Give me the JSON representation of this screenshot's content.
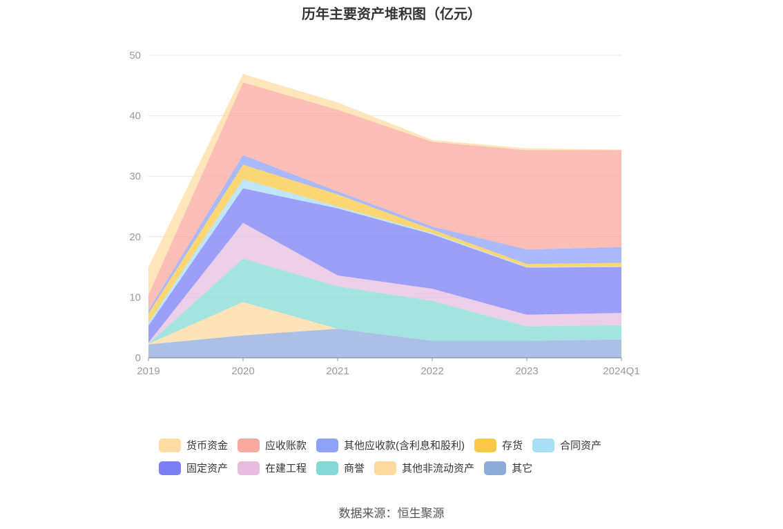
{
  "title": "历年主要资产堆积图（亿元）",
  "source": "数据来源：恒生聚源",
  "chart_data": {
    "type": "area",
    "stacked": true,
    "categories": [
      "2019",
      "2020",
      "2021",
      "2022",
      "2023",
      "2024Q1"
    ],
    "ylim": [
      0,
      50
    ],
    "yticks": [
      0,
      10,
      20,
      30,
      40,
      50
    ],
    "grid": true,
    "legend_position": "bottom",
    "series": [
      {
        "name": "其它",
        "color": "#8fabdb",
        "values": [
          2.2,
          3.7,
          4.8,
          2.8,
          2.8,
          3.0
        ]
      },
      {
        "name": "其他非流动资产",
        "color": "#fdd9a0",
        "values": [
          0.1,
          5.5,
          0.0,
          0.0,
          0.0,
          0.0
        ]
      },
      {
        "name": "商誉",
        "color": "#84d9d6",
        "values": [
          0.0,
          7.2,
          7.0,
          6.6,
          2.4,
          2.4
        ]
      },
      {
        "name": "在建工程",
        "color": "#e6bde0",
        "values": [
          0.2,
          5.9,
          1.8,
          2.0,
          1.9,
          2.0
        ]
      },
      {
        "name": "固定资产",
        "color": "#7b7ff5",
        "values": [
          2.8,
          5.7,
          11.1,
          9.0,
          7.8,
          7.6
        ]
      },
      {
        "name": "合同资产",
        "color": "#a8def6",
        "values": [
          0.5,
          1.5,
          0.3,
          0.2,
          0.1,
          0.1
        ]
      },
      {
        "name": "存货",
        "color": "#fcc845",
        "values": [
          1.5,
          2.4,
          2.0,
          0.6,
          0.5,
          0.6
        ]
      },
      {
        "name": "其他应收款(含利息和股利)",
        "color": "#8ea2f7",
        "values": [
          0.5,
          1.6,
          0.5,
          0.5,
          2.4,
          2.6
        ]
      },
      {
        "name": "应收账款",
        "color": "#f9a89e",
        "values": [
          2.6,
          12.0,
          13.5,
          14.0,
          16.4,
          16.0
        ]
      },
      {
        "name": "货币资金",
        "color": "#ffdca3",
        "values": [
          4.6,
          1.4,
          1.2,
          0.3,
          0.3,
          0.1
        ]
      }
    ]
  },
  "legend": {
    "rows": [
      [
        {
          "label": "货币资金",
          "color": "#ffdca3"
        },
        {
          "label": "应收账款",
          "color": "#f9a89e"
        },
        {
          "label": "其他应收款(含利息和股利)",
          "color": "#8ea2f7"
        },
        {
          "label": "存货",
          "color": "#fcc845"
        },
        {
          "label": "合同资产",
          "color": "#a8def6"
        }
      ],
      [
        {
          "label": "固定资产",
          "color": "#7b7ff5"
        },
        {
          "label": "在建工程",
          "color": "#e6bde0"
        },
        {
          "label": "商誉",
          "color": "#84d9d6"
        },
        {
          "label": "其他非流动资产",
          "color": "#fdd9a0"
        },
        {
          "label": "其它",
          "color": "#8fabdb"
        }
      ]
    ]
  }
}
